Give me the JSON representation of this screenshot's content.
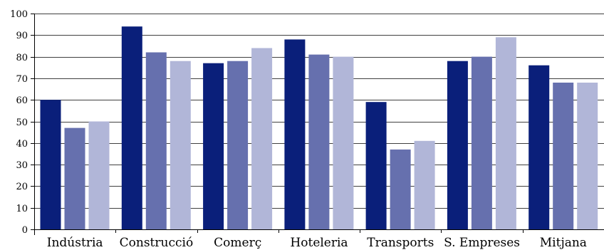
{
  "chart_data": {
    "type": "bar",
    "title": "",
    "xlabel": "",
    "ylabel": "",
    "ylim": [
      0,
      100
    ],
    "yticks": [
      0,
      10,
      20,
      30,
      40,
      50,
      60,
      70,
      80,
      90,
      100
    ],
    "grid": "horizontal",
    "legend": "none",
    "categories": [
      "Indústria",
      "Construcció",
      "Comerç",
      "Hoteleria",
      "Transports",
      "S. Empreses",
      "Mitjana"
    ],
    "series": [
      {
        "color": "#0a1f7a",
        "values": [
          60,
          94,
          77,
          88,
          59,
          78,
          76
        ]
      },
      {
        "color": "#6670ae",
        "values": [
          47,
          82,
          78,
          81,
          37,
          80,
          68
        ]
      },
      {
        "color": "#b1b6d8",
        "values": [
          50,
          78,
          84,
          80,
          41,
          89,
          68
        ]
      }
    ]
  }
}
